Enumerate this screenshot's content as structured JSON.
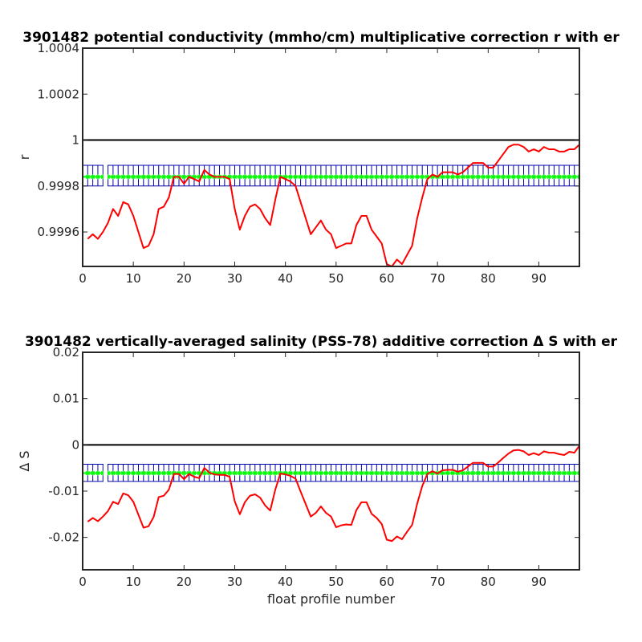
{
  "chart_data": [
    {
      "type": "line",
      "title": "3901482 potential conductivity (mmho/cm) multiplicative correction r with er",
      "xlabel": "",
      "ylabel": "r",
      "xlim": [
        0,
        98
      ],
      "ylim": [
        0.99945,
        1.0004
      ],
      "xticks": [
        "0",
        "10",
        "20",
        "30",
        "40",
        "50",
        "60",
        "70",
        "80",
        "90"
      ],
      "yticks": [
        {
          "value": 0.9996,
          "label": "0.9996"
        },
        {
          "value": 0.9998,
          "label": "0.9998"
        },
        {
          "value": 1.0,
          "label": "1"
        },
        {
          "value": 1.0002,
          "label": "1.0002"
        },
        {
          "value": 1.0004,
          "label": "1.0004"
        }
      ],
      "reference_line": 1.0,
      "fit": {
        "value": 0.99984,
        "err_low": 0.9998,
        "err_high": 0.99989
      },
      "colors": {
        "profile": "#ff0000",
        "reference": "#000000",
        "fit": "#00ff00",
        "error": "#0000aa"
      },
      "series": [
        {
          "x": [
            1,
            2,
            3,
            4,
            5,
            6,
            7,
            8,
            9,
            10,
            11,
            12,
            13,
            14,
            15,
            16,
            17,
            18,
            19,
            20,
            21,
            22,
            23,
            24,
            25,
            26,
            27,
            28,
            29,
            30,
            31,
            32,
            33,
            34,
            35,
            36,
            37,
            38,
            39,
            40,
            41,
            42,
            43,
            44,
            45,
            46,
            47,
            48,
            49,
            50,
            51,
            52,
            53,
            54,
            55,
            56,
            57,
            58,
            59,
            60,
            61,
            62,
            63,
            64,
            65,
            66,
            67,
            68,
            69,
            70,
            71,
            72,
            73,
            74,
            75,
            76,
            77,
            78,
            79,
            80,
            81,
            82,
            83,
            84,
            85,
            86,
            87,
            88,
            89,
            90,
            91,
            92,
            93,
            94,
            95,
            96,
            97,
            98
          ],
          "values": [
            0.99957,
            0.99959,
            0.99957,
            0.9996,
            0.99964,
            0.9997,
            0.99967,
            0.99973,
            0.99972,
            0.99967,
            0.9996,
            0.99953,
            0.99954,
            0.99959,
            0.9997,
            0.99971,
            0.99975,
            0.99984,
            0.99984,
            0.99981,
            0.99984,
            0.99983,
            0.99982,
            0.99987,
            0.99985,
            0.99984,
            0.99984,
            0.99984,
            0.99983,
            0.9997,
            0.99961,
            0.99967,
            0.99971,
            0.99972,
            0.9997,
            0.99966,
            0.99963,
            0.99974,
            0.99984,
            0.99983,
            0.99982,
            0.9998,
            0.99973,
            0.99966,
            0.99959,
            0.99962,
            0.99965,
            0.99961,
            0.99959,
            0.99953,
            0.99954,
            0.99955,
            0.99955,
            0.99963,
            0.99967,
            0.99967,
            0.99961,
            0.99958,
            0.99955,
            0.99946,
            0.99945,
            0.99948,
            0.99946,
            0.9995,
            0.99954,
            0.99966,
            0.99975,
            0.99983,
            0.99985,
            0.99984,
            0.99986,
            0.99986,
            0.99986,
            0.99985,
            0.99986,
            0.99988,
            0.9999,
            0.9999,
            0.9999,
            0.99988,
            0.99988,
            0.99991,
            0.99994,
            0.99997,
            0.99998,
            0.99998,
            0.99997,
            0.99995,
            0.99996,
            0.99995,
            0.99997,
            0.99996,
            0.99996,
            0.99995,
            0.99995,
            0.99996,
            0.99996,
            0.99998
          ]
        }
      ]
    },
    {
      "type": "line",
      "title": "3901482 vertically-averaged salinity (PSS-78) additive correction Δ S with er",
      "xlabel": "float profile number",
      "ylabel": "Δ S",
      "xlim": [
        0,
        98
      ],
      "ylim": [
        -0.027,
        0.02
      ],
      "xticks": [
        "0",
        "10",
        "20",
        "30",
        "40",
        "50",
        "60",
        "70",
        "80",
        "90"
      ],
      "yticks": [
        {
          "value": -0.02,
          "label": "-0.02"
        },
        {
          "value": -0.01,
          "label": "-0.01"
        },
        {
          "value": 0,
          "label": "0"
        },
        {
          "value": 0.01,
          "label": "0.01"
        },
        {
          "value": 0.02,
          "label": "0.02"
        }
      ],
      "reference_line": 0,
      "fit": {
        "value": -0.0061,
        "err_low": -0.0079,
        "err_high": -0.0042
      },
      "colors": {
        "profile": "#ff0000",
        "reference": "#000000",
        "fit": "#00ff00",
        "error": "#0000aa"
      },
      "series": [
        {
          "x": [
            1,
            2,
            3,
            4,
            5,
            6,
            7,
            8,
            9,
            10,
            11,
            12,
            13,
            14,
            15,
            16,
            17,
            18,
            19,
            20,
            21,
            22,
            23,
            24,
            25,
            26,
            27,
            28,
            29,
            30,
            31,
            32,
            33,
            34,
            35,
            36,
            37,
            38,
            39,
            40,
            41,
            42,
            43,
            44,
            45,
            46,
            47,
            48,
            49,
            50,
            51,
            52,
            53,
            54,
            55,
            56,
            57,
            58,
            59,
            60,
            61,
            62,
            63,
            64,
            65,
            66,
            67,
            68,
            69,
            70,
            71,
            72,
            73,
            74,
            75,
            76,
            77,
            78,
            79,
            80,
            81,
            82,
            83,
            84,
            85,
            86,
            87,
            88,
            89,
            90,
            91,
            92,
            93,
            94,
            95,
            96,
            97,
            98
          ],
          "values": [
            -0.0166,
            -0.0158,
            -0.0165,
            -0.0155,
            -0.0143,
            -0.0123,
            -0.0128,
            -0.0105,
            -0.0109,
            -0.0123,
            -0.0151,
            -0.0179,
            -0.0176,
            -0.0156,
            -0.0113,
            -0.011,
            -0.0097,
            -0.0063,
            -0.0063,
            -0.0074,
            -0.0063,
            -0.0069,
            -0.0072,
            -0.005,
            -0.006,
            -0.0064,
            -0.0065,
            -0.0065,
            -0.0069,
            -0.0122,
            -0.015,
            -0.0124,
            -0.011,
            -0.0107,
            -0.0114,
            -0.0131,
            -0.0142,
            -0.0097,
            -0.0062,
            -0.0064,
            -0.0067,
            -0.0073,
            -0.0101,
            -0.0128,
            -0.0155,
            -0.0147,
            -0.0133,
            -0.0147,
            -0.0155,
            -0.0178,
            -0.0174,
            -0.0172,
            -0.0173,
            -0.0141,
            -0.0124,
            -0.0124,
            -0.0149,
            -0.0158,
            -0.0171,
            -0.0205,
            -0.0208,
            -0.0198,
            -0.0204,
            -0.0188,
            -0.0173,
            -0.0127,
            -0.0089,
            -0.0063,
            -0.0057,
            -0.0062,
            -0.0055,
            -0.0054,
            -0.0054,
            -0.0058,
            -0.0055,
            -0.0047,
            -0.0039,
            -0.0039,
            -0.0039,
            -0.0047,
            -0.0047,
            -0.0038,
            -0.0028,
            -0.0019,
            -0.0012,
            -0.0011,
            -0.0014,
            -0.0022,
            -0.0018,
            -0.0022,
            -0.0014,
            -0.0017,
            -0.0017,
            -0.002,
            -0.0022,
            -0.0015,
            -0.0017,
            -0.0002
          ]
        }
      ]
    }
  ]
}
